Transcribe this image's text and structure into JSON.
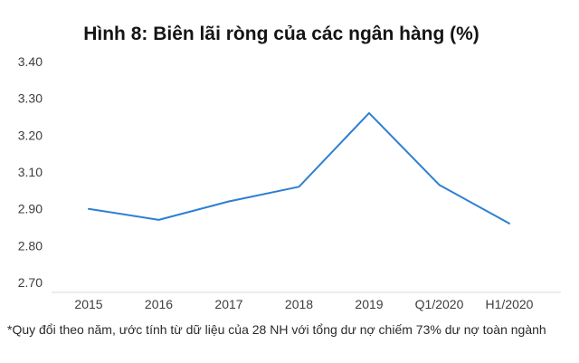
{
  "title": "Hình 8: Biên lãi ròng của các ngân hàng (%)",
  "footnote": "*Quy đổi theo năm, ước tính từ dữ liệu của 28 NH với tổng dư nợ chiếm 73% dư nợ toàn ngành",
  "colors": {
    "line": "#2E7FD2",
    "axis_line": "#d9d9d9",
    "tick_text": "#3d3d3d",
    "title_text": "#141414"
  },
  "chart_data": {
    "type": "line",
    "title": "Hình 8: Biên lãi ròng của các ngân hàng (%)",
    "categories": [
      "2015",
      "2016",
      "2017",
      "2018",
      "2019",
      "Q1/2020",
      "H1/2020"
    ],
    "series": [
      {
        "name": "Biên lãi ròng (%)",
        "values": [
          2.9,
          2.87,
          2.94,
          3.02,
          3.26,
          3.03,
          2.86
        ]
      }
    ],
    "y_tick_labels": [
      "3.40",
      "3.30",
      "3.20",
      "3.10",
      "2.90",
      "2.80",
      "2.70"
    ],
    "xlabel": "",
    "ylabel": "",
    "ylim_labels": [
      "2.70",
      "3.40"
    ],
    "y_axis_note": "tick labels evenly spaced as shown; 3.00 label absent between 3.10 and 2.90",
    "grid": false,
    "legend": false,
    "markers": false,
    "line_color": "#2E7FD2"
  }
}
